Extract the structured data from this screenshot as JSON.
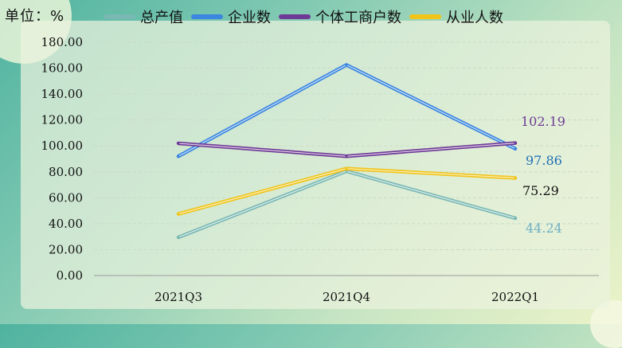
{
  "unit_label": "单位：%",
  "chart_data": {
    "type": "line",
    "categories": [
      "2021Q3",
      "2021Q4",
      "2022Q1"
    ],
    "ylim": [
      0,
      180
    ],
    "yticks": [
      "0.00",
      "20.00",
      "40.00",
      "60.00",
      "80.00",
      "100.00",
      "120.00",
      "140.00",
      "160.00",
      "180.00"
    ],
    "grid": true,
    "legend_position": "top",
    "series": [
      {
        "name": "总产值",
        "color": "#79b8b3",
        "values": [
          29.5,
          80.5,
          44.24
        ],
        "end_label": "44.24",
        "label_color": "#6fb0c4"
      },
      {
        "name": "企业数",
        "color": "#3a86e0",
        "values": [
          92.0,
          162.5,
          97.86
        ],
        "end_label": "97.86",
        "label_color": "#1f6fb7"
      },
      {
        "name": "个体工商户数",
        "color": "#6f3a96",
        "values": [
          102.0,
          92.0,
          102.19
        ],
        "end_label": "102.19",
        "label_color": "#6f3a96"
      },
      {
        "name": "从业人数",
        "color": "#f0c419",
        "values": [
          47.5,
          82.5,
          75.29
        ],
        "end_label": "75.29",
        "label_color": "#111111"
      }
    ]
  }
}
